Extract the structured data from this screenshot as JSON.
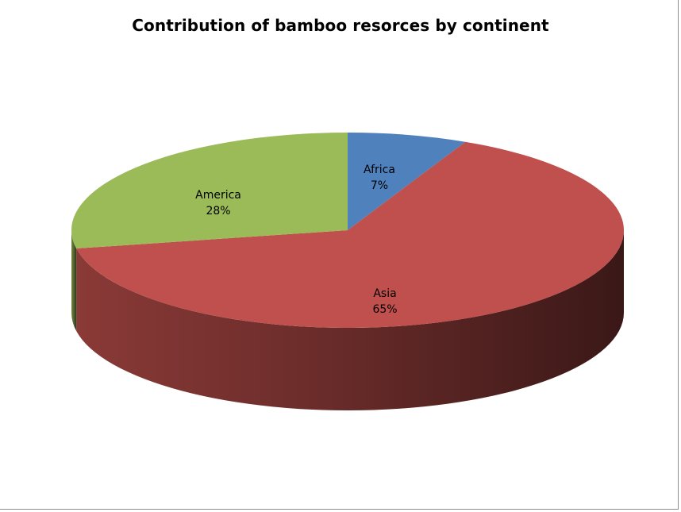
{
  "chart_data": {
    "type": "pie",
    "title": "Contribution of bamboo resorces by continent",
    "three_d": true,
    "start_angle_deg": 0,
    "direction": "clockwise",
    "slices": [
      {
        "name": "Africa",
        "value": 7,
        "label": "7%",
        "color": "#4f81bd"
      },
      {
        "name": "Asia",
        "value": 65,
        "label": "65%",
        "color": "#c0504d"
      },
      {
        "name": "America",
        "value": 28,
        "label": "28%",
        "color": "#9bbb59"
      }
    ],
    "legend": "none",
    "data_labels": "category-and-percent, inside"
  }
}
